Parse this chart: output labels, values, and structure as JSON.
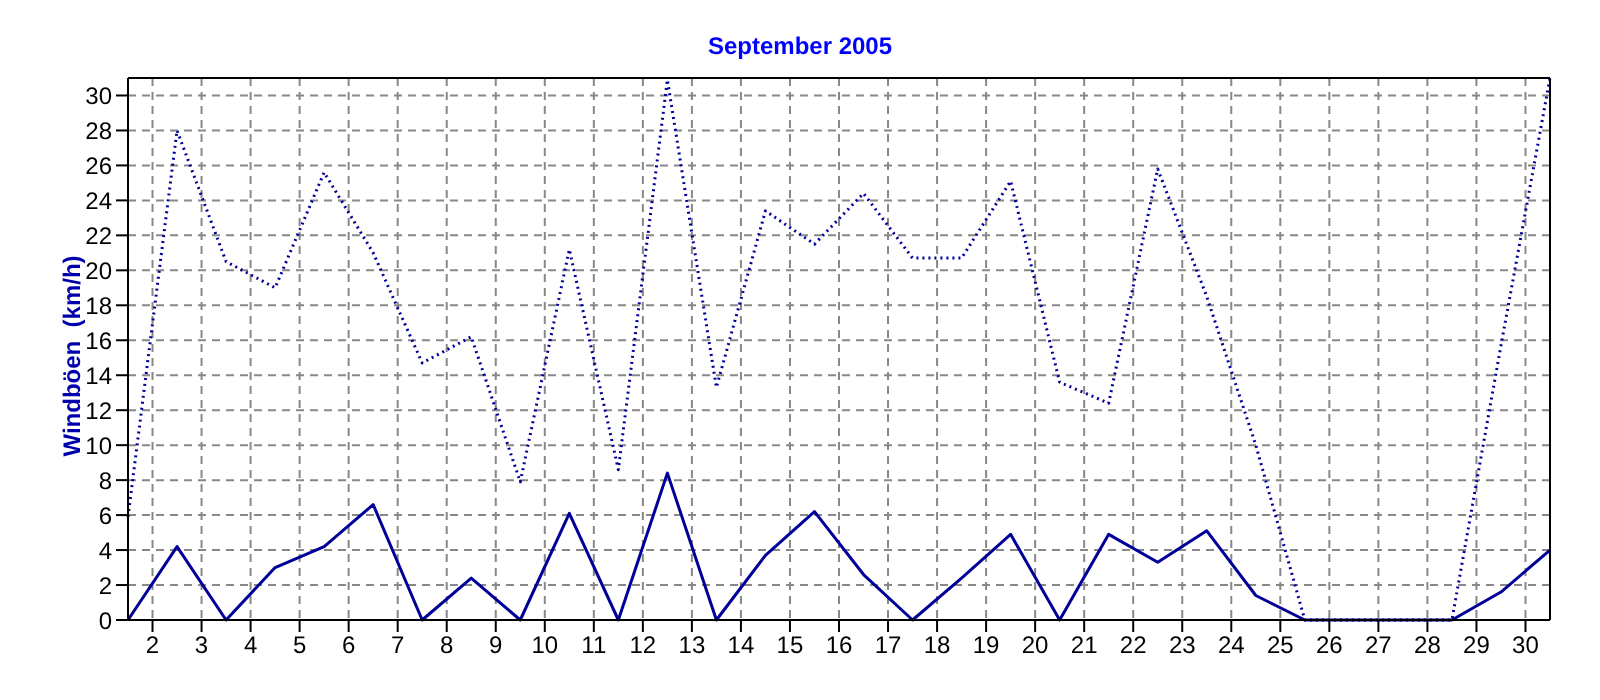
{
  "chart_data": {
    "type": "line",
    "title": "September 2005",
    "ylabel": "Windböen  (km/h)",
    "x": [
      1.5,
      2.5,
      3.5,
      4.5,
      5.5,
      6.5,
      7.5,
      8.5,
      9.5,
      10.5,
      11.5,
      12.5,
      13.5,
      14.5,
      15.5,
      16.5,
      17.5,
      18.5,
      19.5,
      20.5,
      21.5,
      22.5,
      23.5,
      24.5,
      25.5,
      26.5,
      27.5,
      28.5,
      29.5,
      30.5
    ],
    "series": [
      {
        "color": "#000099",
        "line_style": "dotted",
        "values": [
          5.9,
          28,
          20.5,
          19,
          25.6,
          21,
          14.7,
          16.2,
          7.9,
          21.2,
          8.6,
          30.9,
          13.3,
          23.4,
          21.5,
          24.4,
          20.7,
          20.7,
          25.1,
          13.6,
          12.4,
          25.8,
          18.5,
          10,
          0,
          0,
          0,
          0,
          15.7,
          31
        ]
      },
      {
        "color": "#000099",
        "line_style": "solid",
        "values": [
          0,
          4.2,
          0,
          3,
          4.2,
          6.6,
          0,
          2.4,
          0,
          6.1,
          0,
          8.4,
          0,
          3.7,
          6.2,
          2.6,
          0,
          2.4,
          4.9,
          0,
          4.9,
          3.3,
          5.1,
          1.4,
          0,
          0,
          0,
          0,
          1.6,
          4
        ]
      }
    ],
    "xlim": [
      1.5,
      30.5
    ],
    "xticks": [
      2,
      3,
      4,
      5,
      6,
      7,
      8,
      9,
      10,
      11,
      12,
      13,
      14,
      15,
      16,
      17,
      18,
      19,
      20,
      21,
      22,
      23,
      24,
      25,
      26,
      27,
      28,
      29,
      30
    ],
    "ylim": [
      0,
      31
    ],
    "yticks": [
      0,
      2,
      4,
      6,
      8,
      10,
      12,
      14,
      16,
      18,
      20,
      22,
      24,
      26,
      28,
      30
    ],
    "grid": true,
    "legend": false,
    "marker": "none"
  }
}
